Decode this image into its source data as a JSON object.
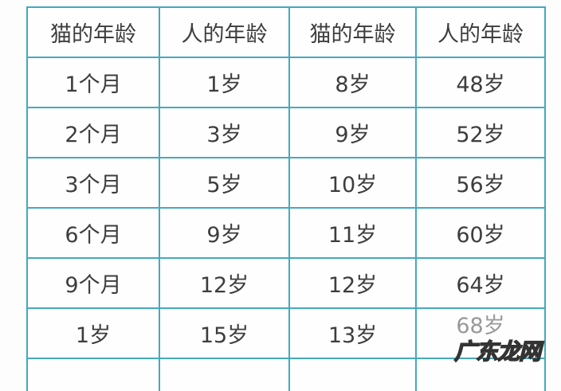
{
  "headers": [
    "猫的年龄",
    "人的年龄",
    "猫的年龄",
    "人的年龄"
  ],
  "rows": [
    [
      "1个月",
      "1岁",
      "8岁",
      "48岁"
    ],
    [
      "2个月",
      "3岁",
      "9岁",
      "52岁"
    ],
    [
      "3个月",
      "5岁",
      "10岁",
      "56岁"
    ],
    [
      "6个月",
      "9岁",
      "11岁",
      "60岁"
    ],
    [
      "9个月",
      "12岁",
      "12岁",
      "64岁"
    ],
    [
      "1岁",
      "15岁",
      "13岁",
      "68岁"
    ]
  ],
  "watermark": "广东龙网",
  "border_color": "#45a9c0"
}
